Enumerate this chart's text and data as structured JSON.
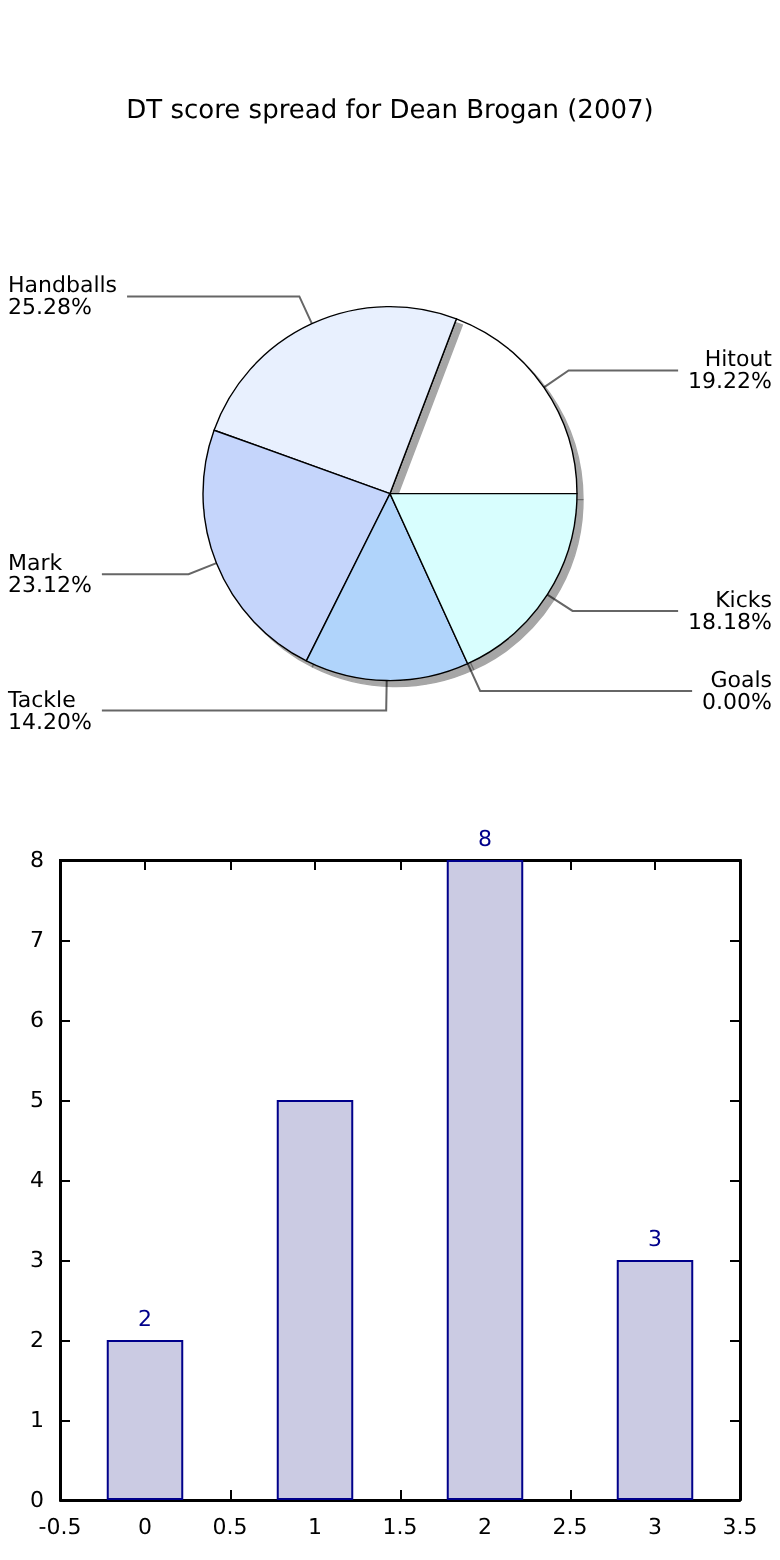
{
  "chart_data": [
    {
      "type": "pie",
      "title": "DT score spread for Dean Brogan (2007)",
      "categories": [
        "Hitout",
        "Handballs",
        "Mark",
        "Tackle",
        "Goals",
        "Kicks"
      ],
      "values": [
        19.22,
        25.28,
        23.12,
        14.2,
        0.0,
        18.18
      ],
      "value_labels": [
        "19.22%",
        "25.28%",
        "23.12%",
        "14.20%",
        "0.00%",
        "18.18%"
      ],
      "colors": [
        "#ffffff",
        "#e8f0fe",
        "#c5d5fb",
        "#b0d4fb",
        "#c8d0f0",
        "#d8fefe"
      ],
      "legend": false
    },
    {
      "type": "bar",
      "x": [
        0,
        1,
        2,
        3
      ],
      "values": [
        2,
        5,
        8,
        3
      ],
      "value_labels": [
        "2",
        null,
        "8",
        "3"
      ],
      "color": "#cbcbe3",
      "xlim": [
        -0.5,
        3.5
      ],
      "xticks": [
        -0.5,
        0,
        0.5,
        1,
        1.5,
        2,
        2.5,
        3,
        3.5
      ],
      "ylim": [
        0,
        8
      ],
      "yticks": [
        0,
        1,
        2,
        3,
        4,
        5,
        6,
        7,
        8
      ],
      "grid": false,
      "legend": false
    }
  ]
}
